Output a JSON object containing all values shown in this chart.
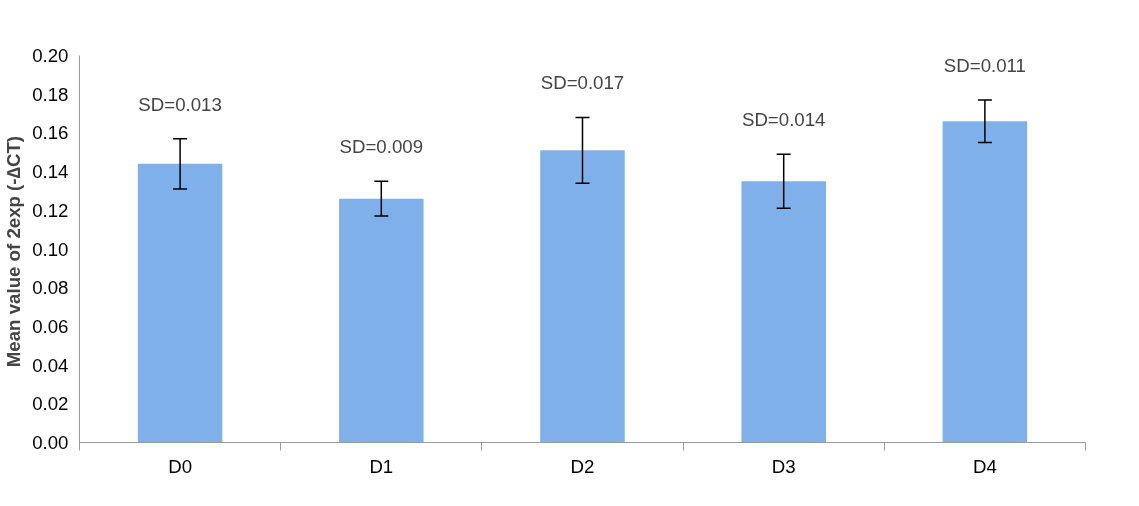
{
  "chart_data": {
    "type": "bar",
    "ylabel": "Mean value of  2exp (-∆CT)",
    "categories": [
      "D0",
      "D1",
      "D2",
      "D3",
      "D4"
    ],
    "values": [
      0.144,
      0.126,
      0.151,
      0.135,
      0.166
    ],
    "errors": [
      0.013,
      0.009,
      0.017,
      0.014,
      0.011
    ],
    "color": "#7fb0ea",
    "ylim": [
      0,
      0.2
    ],
    "yticks": [
      {
        "value": 0,
        "label": "0.00"
      },
      {
        "value": 0.02,
        "label": "0.02"
      },
      {
        "value": 0.04,
        "label": "0.04"
      },
      {
        "value": 0.06,
        "label": "0.06"
      },
      {
        "value": 0.08,
        "label": "0.08"
      },
      {
        "value": 0.1,
        "label": "0.10"
      },
      {
        "value": 0.12,
        "label": "0.12"
      },
      {
        "value": 0.14,
        "label": "0.14"
      },
      {
        "value": 0.16,
        "label": "0.16"
      },
      {
        "value": 0.18,
        "label": "0.18"
      },
      {
        "value": 0.2,
        "label": "0.20"
      }
    ],
    "annotations": [
      {
        "text": "SD=0.013",
        "x": "D0",
        "y": 0.157
      },
      {
        "text": "SD=0.009",
        "x": "D1",
        "y": 0.135
      },
      {
        "text": "SD=0.017",
        "x": "D2",
        "y": 0.168
      },
      {
        "text": "SD=0.014",
        "x": "D3",
        "y": 0.149
      },
      {
        "text": "SD=0.011",
        "x": "D4",
        "y": 0.177
      }
    ],
    "grid": false
  }
}
